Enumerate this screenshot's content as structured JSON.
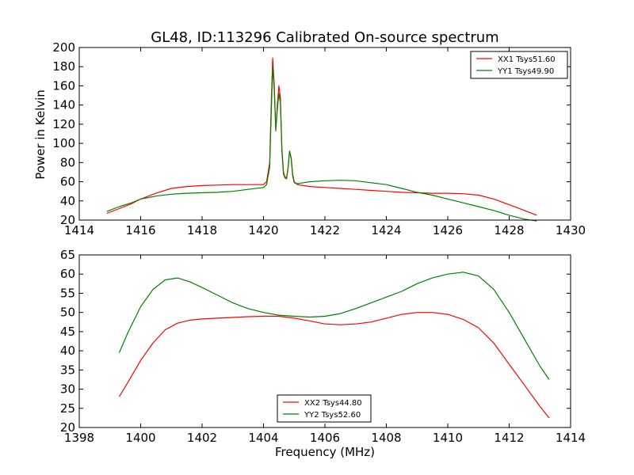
{
  "figure": {
    "title": "GL48, ID:113296 Calibrated On-source spectrum",
    "ylabel": "Power in Kelvin",
    "xlabel": "Frequency (MHz)"
  },
  "chart_data": [
    {
      "type": "line",
      "xlim": [
        1414,
        1430
      ],
      "ylim": [
        20,
        200
      ],
      "xticks": [
        1414,
        1416,
        1418,
        1420,
        1422,
        1424,
        1426,
        1428,
        1430
      ],
      "yticks": [
        20,
        40,
        60,
        80,
        100,
        120,
        140,
        160,
        180,
        200
      ],
      "legend_position": "top-right",
      "series": [
        {
          "name": "XX1 Tsys51.60",
          "color": "#ff0000",
          "x": [
            1414.9,
            1415.3,
            1415.7,
            1416.0,
            1416.5,
            1417.0,
            1417.5,
            1418.0,
            1418.5,
            1419.0,
            1419.5,
            1420.0,
            1420.1,
            1420.2,
            1420.25,
            1420.3,
            1420.35,
            1420.4,
            1420.45,
            1420.5,
            1420.55,
            1420.6,
            1420.65,
            1420.7,
            1420.75,
            1420.8,
            1420.85,
            1420.9,
            1420.95,
            1421.0,
            1421.1,
            1421.3,
            1421.5,
            1422.0,
            1422.5,
            1423.0,
            1423.5,
            1424.0,
            1424.5,
            1425.0,
            1425.5,
            1426.0,
            1426.5,
            1427.0,
            1427.5,
            1428.0,
            1428.5,
            1428.9
          ],
          "y": [
            27,
            32,
            37,
            42,
            48,
            53,
            55,
            56,
            56.5,
            57,
            57,
            57,
            60,
            80,
            140,
            189,
            160,
            113,
            140,
            160,
            148,
            95,
            70,
            65,
            64,
            75,
            92,
            85,
            68,
            60,
            57,
            56,
            55,
            54,
            53,
            52,
            51,
            50,
            49,
            48.5,
            48,
            48,
            47.5,
            46,
            42,
            36,
            30,
            25
          ]
        },
        {
          "name": "YY1 Tsys49.90",
          "color": "#008000",
          "x": [
            1414.9,
            1415.3,
            1415.7,
            1416.0,
            1416.5,
            1417.0,
            1417.5,
            1418.0,
            1418.5,
            1419.0,
            1419.5,
            1420.0,
            1420.1,
            1420.2,
            1420.25,
            1420.3,
            1420.35,
            1420.4,
            1420.45,
            1420.5,
            1420.55,
            1420.6,
            1420.65,
            1420.7,
            1420.75,
            1420.8,
            1420.85,
            1420.9,
            1420.95,
            1421.0,
            1421.1,
            1421.3,
            1421.5,
            1422.0,
            1422.5,
            1423.0,
            1423.5,
            1424.0,
            1424.5,
            1425.0,
            1425.5,
            1426.0,
            1426.5,
            1427.0,
            1427.5,
            1428.0,
            1428.5,
            1428.9
          ],
          "y": [
            29,
            34,
            38,
            42,
            45,
            47,
            48,
            48.5,
            49,
            50,
            52,
            54,
            57,
            75,
            130,
            180,
            155,
            115,
            135,
            152,
            142,
            92,
            68,
            64,
            63,
            74,
            92,
            84,
            66,
            59,
            58,
            59,
            60,
            61,
            61.5,
            61,
            59,
            57,
            53,
            49,
            46,
            42,
            38,
            34,
            30,
            25,
            21,
            19
          ]
        }
      ]
    },
    {
      "type": "line",
      "xlim": [
        1398,
        1414
      ],
      "ylim": [
        20,
        65
      ],
      "xticks": [
        1398,
        1400,
        1402,
        1404,
        1406,
        1408,
        1410,
        1412,
        1414
      ],
      "yticks": [
        20,
        25,
        30,
        35,
        40,
        45,
        50,
        55,
        60,
        65
      ],
      "legend_position": "bottom-center",
      "series": [
        {
          "name": "XX2 Tsys44.80",
          "color": "#ff0000",
          "x": [
            1399.3,
            1399.6,
            1400.0,
            1400.4,
            1400.8,
            1401.2,
            1401.6,
            1402.0,
            1402.5,
            1403.0,
            1403.5,
            1404.0,
            1404.5,
            1405.0,
            1405.5,
            1406.0,
            1406.5,
            1407.0,
            1407.5,
            1408.0,
            1408.5,
            1409.0,
            1409.5,
            1410.0,
            1410.5,
            1411.0,
            1411.5,
            1412.0,
            1412.5,
            1413.0,
            1413.3
          ],
          "y": [
            28,
            32,
            37.5,
            42,
            45.5,
            47.2,
            48,
            48.3,
            48.5,
            48.7,
            48.9,
            49,
            49,
            48.5,
            47.8,
            47,
            46.8,
            47,
            47.5,
            48.5,
            49.5,
            50,
            50,
            49.5,
            48.2,
            46,
            42,
            36.5,
            31,
            25.5,
            22.5
          ]
        },
        {
          "name": "YY2 Tsys52.60",
          "color": "#008000",
          "x": [
            1399.3,
            1399.6,
            1400.0,
            1400.4,
            1400.8,
            1401.2,
            1401.6,
            1402.0,
            1402.5,
            1403.0,
            1403.5,
            1404.0,
            1404.5,
            1405.0,
            1405.5,
            1406.0,
            1406.5,
            1407.0,
            1407.5,
            1408.0,
            1408.5,
            1409.0,
            1409.5,
            1410.0,
            1410.5,
            1411.0,
            1411.5,
            1412.0,
            1412.5,
            1413.0,
            1413.3
          ],
          "y": [
            39.5,
            45,
            51.5,
            56,
            58.5,
            59,
            58,
            56.5,
            54.5,
            52.5,
            51,
            50,
            49.3,
            49,
            48.8,
            49,
            49.7,
            51,
            52.5,
            54,
            55.5,
            57.5,
            59,
            60,
            60.5,
            59.5,
            56,
            50,
            43,
            36,
            32.5
          ]
        }
      ]
    }
  ]
}
